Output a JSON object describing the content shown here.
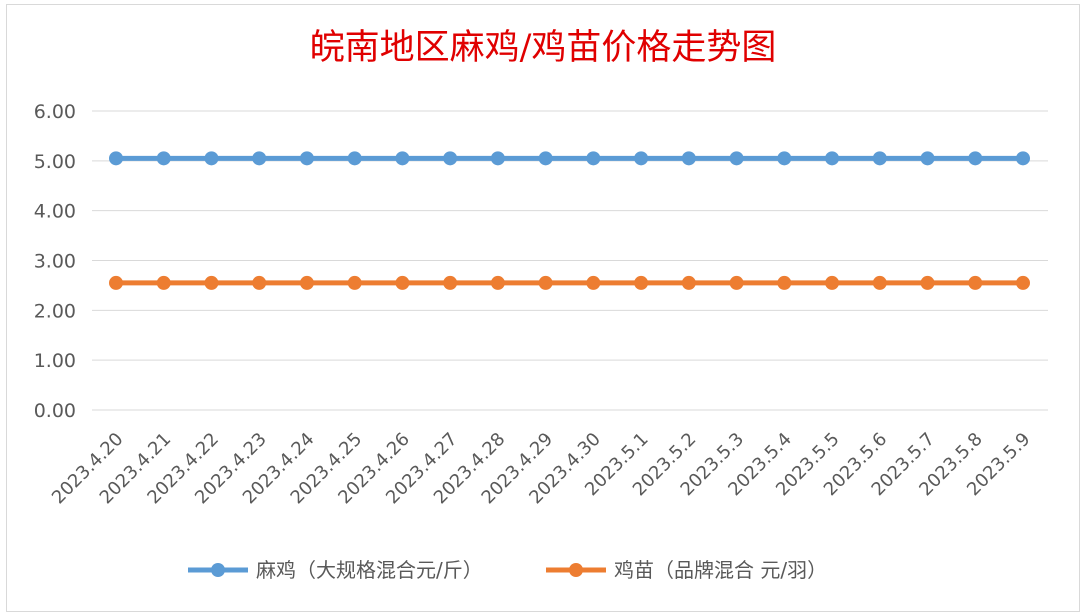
{
  "chart_data": {
    "type": "line",
    "title": "皖南地区麻鸡/鸡苗价格走势图",
    "categories": [
      "2023.4.20",
      "2023.4.21",
      "2023.4.22",
      "2023.4.23",
      "2023.4.24",
      "2023.4.25",
      "2023.4.26",
      "2023.4.27",
      "2023.4.28",
      "2023.4.29",
      "2023.4.30",
      "2023.5.1",
      "2023.5.2",
      "2023.5.3",
      "2023.5.4",
      "2023.5.5",
      "2023.5.6",
      "2023.5.7",
      "2023.5.8",
      "2023.5.9"
    ],
    "ylim": [
      0,
      6
    ],
    "yticks": [
      "0.00",
      "1.00",
      "2.00",
      "3.00",
      "4.00",
      "5.00",
      "6.00"
    ],
    "grid": true,
    "legend_position": "bottom",
    "series": [
      {
        "name": "麻鸡（大规格混合元/斤）",
        "color": "#5b9bd5",
        "values": [
          5.05,
          5.05,
          5.05,
          5.05,
          5.05,
          5.05,
          5.05,
          5.05,
          5.05,
          5.05,
          5.05,
          5.05,
          5.05,
          5.05,
          5.05,
          5.05,
          5.05,
          5.05,
          5.05,
          5.05
        ]
      },
      {
        "name": "鸡苗（品牌混合 元/羽）",
        "color": "#ed7d31",
        "values": [
          2.55,
          2.55,
          2.55,
          2.55,
          2.55,
          2.55,
          2.55,
          2.55,
          2.55,
          2.55,
          2.55,
          2.55,
          2.55,
          2.55,
          2.55,
          2.55,
          2.55,
          2.55,
          2.55,
          2.55
        ]
      }
    ]
  }
}
